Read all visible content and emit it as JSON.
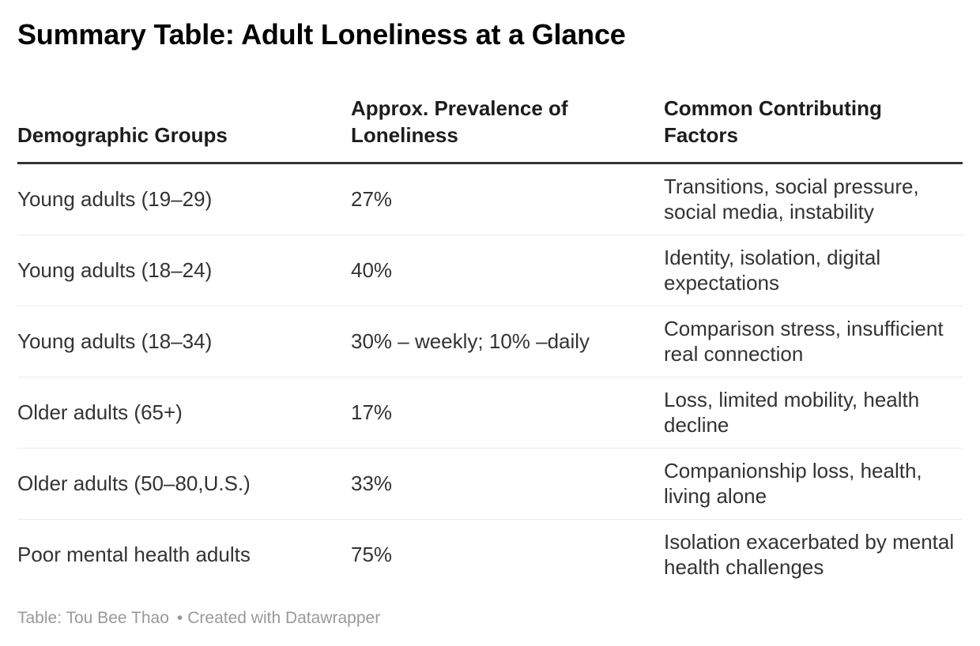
{
  "title": "Summary Table: Adult Loneliness at a Glance",
  "chart_data": {
    "type": "table",
    "title": "Summary Table: Adult Loneliness at a Glance",
    "columns": [
      "Demographic Groups",
      "Approx. Prevalence of Loneliness",
      "Common Contributing Factors"
    ],
    "rows": [
      [
        "Young adults (19–29)",
        "27%",
        "Transitions, social pressure, social media, instability"
      ],
      [
        "Young adults (18–24)",
        "40%",
        "Identity, isolation, digital expectations"
      ],
      [
        "Young adults (18–34)",
        "30% – weekly; 10% –daily",
        "Comparison stress, insufficient real connection"
      ],
      [
        "Older adults (65+)",
        "17%",
        "Loss, limited mobility, health decline"
      ],
      [
        "Older adults (50–80,U.S.)",
        "33%",
        "Companionship loss, health, living alone"
      ],
      [
        "Poor mental health adults",
        "75%",
        "Isolation exacerbated by mental health challenges"
      ]
    ]
  },
  "footer": {
    "attribution": "Table: Tou Bee Thao",
    "separator": "•",
    "credit": "Created with Datawrapper"
  },
  "colors": {
    "background": "#ffffff",
    "title_text": "#000000",
    "header_text": "#1d1d1d",
    "body_text": "#333333",
    "header_rule": "#333333",
    "row_divider": "#ebebeb",
    "footer_text": "#999999"
  }
}
